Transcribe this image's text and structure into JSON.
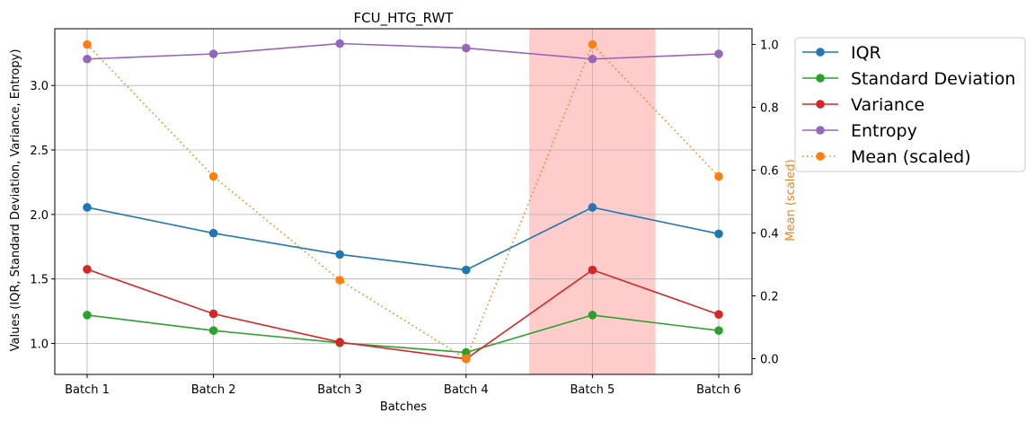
{
  "chart_data": {
    "type": "line",
    "title": "FCU_HTG_RWT",
    "xlabel": "Batches",
    "ylabel": "Values (IQR, Standard Deviation, Variance, Entropy)",
    "y2label": "Mean (scaled)",
    "categories": [
      "Batch 1",
      "Batch 2",
      "Batch 3",
      "Batch 4",
      "Batch 5",
      "Batch 6"
    ],
    "ylim": [
      0.76,
      3.44
    ],
    "yticks": [
      1.0,
      1.5,
      2.0,
      2.5,
      3.0
    ],
    "ytick_labels": [
      "1.0",
      "1.5",
      "2.0",
      "2.5",
      "3.0"
    ],
    "y2lim": [
      -0.05,
      1.05
    ],
    "y2ticks": [
      0.0,
      0.2,
      0.4,
      0.6,
      0.8,
      1.0
    ],
    "y2tick_labels": [
      "0.0",
      "0.2",
      "0.4",
      "0.6",
      "0.8",
      "1.0"
    ],
    "grid": true,
    "legend_position": "outside-top-right",
    "highlight": {
      "from": 3.5,
      "to": 4.5,
      "color": "#ff9999"
    },
    "series": [
      {
        "name": "IQR",
        "axis": "left",
        "color": "#1f77b4",
        "style": "solid",
        "values": [
          2.055,
          1.855,
          1.69,
          1.57,
          2.055,
          1.85
        ]
      },
      {
        "name": "Standard Deviation",
        "axis": "left",
        "color": "#2ca02c",
        "style": "solid",
        "values": [
          1.22,
          1.1,
          1.005,
          0.93,
          1.22,
          1.1
        ]
      },
      {
        "name": "Variance",
        "axis": "left",
        "color": "#d62728",
        "style": "solid",
        "values": [
          1.575,
          1.23,
          1.01,
          0.88,
          1.57,
          1.225
        ]
      },
      {
        "name": "Entropy",
        "axis": "left",
        "color": "#9467bd",
        "style": "solid",
        "values": [
          3.205,
          3.245,
          3.325,
          3.29,
          3.205,
          3.245
        ]
      },
      {
        "name": "Mean (scaled)",
        "axis": "right",
        "color": "#ff7f0e",
        "style": "dotted",
        "values": [
          1.0,
          0.58,
          0.25,
          0.0,
          1.0,
          0.58
        ]
      }
    ]
  }
}
